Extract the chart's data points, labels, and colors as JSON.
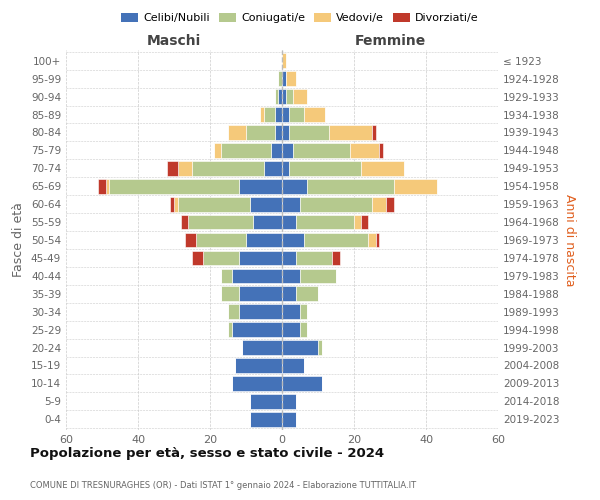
{
  "age_groups": [
    "0-4",
    "5-9",
    "10-14",
    "15-19",
    "20-24",
    "25-29",
    "30-34",
    "35-39",
    "40-44",
    "45-49",
    "50-54",
    "55-59",
    "60-64",
    "65-69",
    "70-74",
    "75-79",
    "80-84",
    "85-89",
    "90-94",
    "95-99",
    "100+"
  ],
  "birth_years": [
    "2019-2023",
    "2014-2018",
    "2009-2013",
    "2004-2008",
    "1999-2003",
    "1994-1998",
    "1989-1993",
    "1984-1988",
    "1979-1983",
    "1974-1978",
    "1969-1973",
    "1964-1968",
    "1959-1963",
    "1954-1958",
    "1949-1953",
    "1944-1948",
    "1939-1943",
    "1934-1938",
    "1929-1933",
    "1924-1928",
    "≤ 1923"
  ],
  "colors": {
    "celibi": "#4472b8",
    "coniugati": "#b5c98e",
    "vedovi": "#f5c97a",
    "divorziati": "#c0392b"
  },
  "maschi": {
    "celibi": [
      9,
      9,
      14,
      13,
      11,
      14,
      12,
      12,
      14,
      12,
      10,
      8,
      9,
      12,
      5,
      3,
      2,
      2,
      1,
      0,
      0
    ],
    "coniugati": [
      0,
      0,
      0,
      0,
      0,
      1,
      3,
      5,
      3,
      10,
      14,
      18,
      20,
      36,
      20,
      14,
      8,
      3,
      1,
      1,
      0
    ],
    "vedovi": [
      0,
      0,
      0,
      0,
      0,
      0,
      0,
      0,
      0,
      0,
      0,
      0,
      1,
      1,
      4,
      2,
      5,
      1,
      0,
      0,
      0
    ],
    "divorziati": [
      0,
      0,
      0,
      0,
      0,
      0,
      0,
      0,
      0,
      3,
      3,
      2,
      1,
      2,
      3,
      0,
      0,
      0,
      0,
      0,
      0
    ]
  },
  "femmine": {
    "celibi": [
      4,
      4,
      11,
      6,
      10,
      5,
      5,
      4,
      5,
      4,
      6,
      4,
      5,
      7,
      2,
      3,
      2,
      2,
      1,
      1,
      0
    ],
    "coniugati": [
      0,
      0,
      0,
      0,
      1,
      2,
      2,
      6,
      10,
      10,
      18,
      16,
      20,
      24,
      20,
      16,
      11,
      4,
      2,
      0,
      0
    ],
    "vedovi": [
      0,
      0,
      0,
      0,
      0,
      0,
      0,
      0,
      0,
      0,
      2,
      2,
      4,
      12,
      12,
      8,
      12,
      6,
      4,
      3,
      1
    ],
    "divorziati": [
      0,
      0,
      0,
      0,
      0,
      0,
      0,
      0,
      0,
      2,
      1,
      2,
      2,
      0,
      0,
      1,
      1,
      0,
      0,
      0,
      0
    ]
  },
  "title": "Popolazione per età, sesso e stato civile - 2024",
  "subtitle": "COMUNE DI TRESNURAGHES (OR) - Dati ISTAT 1° gennaio 2024 - Elaborazione TUTTITALIA.IT",
  "ylabel_left": "Fasce di età",
  "ylabel_right": "Anni di nascita",
  "xlabel_maschi": "Maschi",
  "xlabel_femmine": "Femmine",
  "xlim": 60,
  "legend_labels": [
    "Celibi/Nubili",
    "Coniugati/e",
    "Vedovi/e",
    "Divorziati/e"
  ],
  "bg_color": "#ffffff",
  "grid_color": "#cccccc"
}
